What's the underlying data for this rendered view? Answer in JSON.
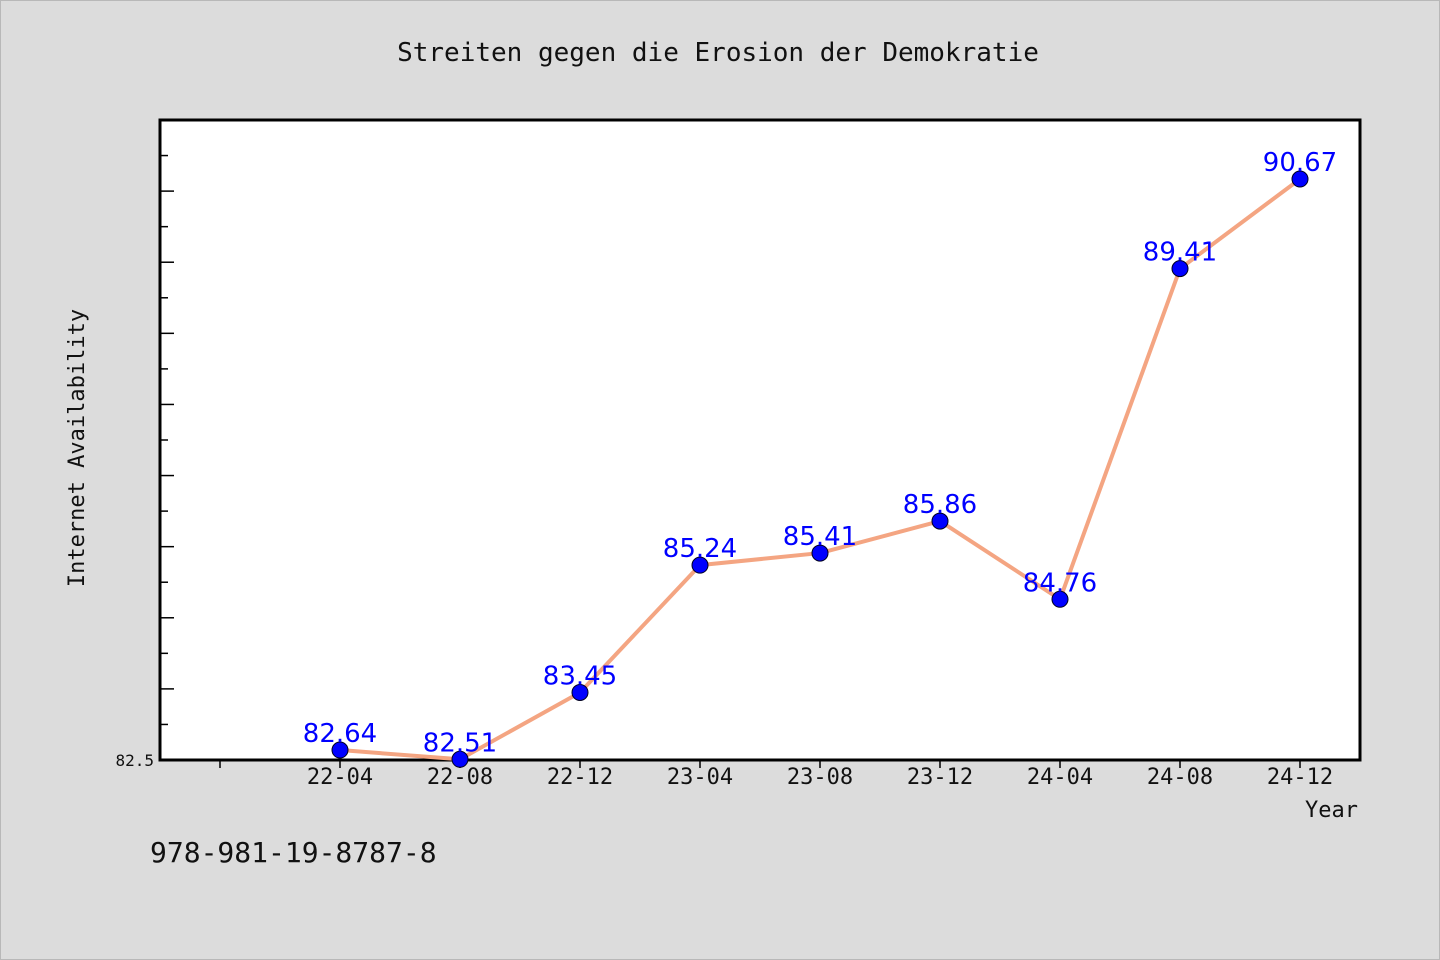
{
  "chart_data": {
    "type": "line",
    "title": "Streiten gegen die Erosion der Demokratie",
    "xlabel": "Year",
    "ylabel": "Internet Availability",
    "categories": [
      "22-04",
      "22-08",
      "22-12",
      "23-04",
      "23-08",
      "23-12",
      "24-04",
      "24-08",
      "24-12"
    ],
    "values": [
      82.64,
      82.51,
      83.45,
      85.24,
      85.41,
      85.86,
      84.76,
      89.41,
      90.67
    ],
    "data_labels": [
      "82.64",
      "82.51",
      "83.45",
      "85.24",
      "85.41",
      "85.86",
      "84.76",
      "89.41",
      "90.67"
    ],
    "ylim": [
      82.5,
      91.5
    ],
    "ytick_labels": [
      "82.5"
    ],
    "grid": false,
    "line_color": "#f4a582",
    "marker_color": "#0000ff",
    "label_color": "#0000ff"
  },
  "footer": {
    "isbn": "978-981-19-8787-8"
  }
}
